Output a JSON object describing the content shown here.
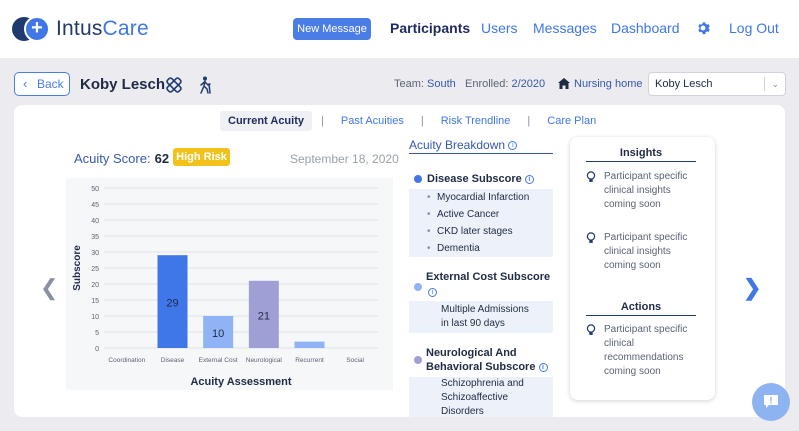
{
  "app": {
    "logo_part1": "Intus",
    "logo_part2": "Care"
  },
  "nav": {
    "new_message": "New Message",
    "links": [
      "Participants",
      "Users",
      "Messages",
      "Dashboard"
    ],
    "logout": "Log Out"
  },
  "header": {
    "back": "Back",
    "participant_name": "Koby Lesch",
    "team_label": "Team:",
    "team_value": "South",
    "enrolled_label": "Enrolled:",
    "enrolled_value": "2/2020",
    "residence": "Nursing home",
    "selected_participant": "Koby Lesch"
  },
  "tabs": [
    "Current Acuity",
    "Past Acuities",
    "Risk Trendline",
    "Care Plan"
  ],
  "acuity": {
    "score_label": "Acuity Score:",
    "score": "62",
    "risk": "High Risk",
    "date": "September 18, 2020"
  },
  "chart_data": {
    "type": "bar",
    "categories": [
      "Coordination",
      "Disease",
      "External Cost",
      "Neurological",
      "Recurrent",
      "Social"
    ],
    "values": [
      0,
      29,
      10,
      21,
      2,
      0
    ],
    "data_labels": [
      "",
      "29",
      "10",
      "21",
      "",
      ""
    ],
    "colors": [
      "#3f77e8",
      "#3f77e8",
      "#8fb3f5",
      "#9f9fd6",
      "#8fb3f5",
      "#8fb3f5"
    ],
    "xlabel": "Acuity Assessment",
    "ylabel": "Subscore",
    "ylim": [
      0,
      50
    ],
    "yticks": [
      0,
      5,
      10,
      15,
      20,
      25,
      30,
      35,
      40,
      45,
      50
    ],
    "grid": true
  },
  "breakdown": {
    "title": "Acuity Breakdown",
    "disease": {
      "title": "Disease Subscore",
      "color": "#3f77e8",
      "items": [
        "Myocardial Infarction",
        "Active Cancer",
        "CKD later stages",
        "Dementia"
      ]
    },
    "external": {
      "title": "External Cost Subscore",
      "color": "#8fb3f5",
      "line1": "Multiple Admissions",
      "line2": "in last 90 days"
    },
    "neuro": {
      "title1": "Neurological And",
      "title2": "Behavioral Subscore",
      "color": "#9f9fd6",
      "line1": "Schizophrenia and",
      "line2": "Schizoaffective",
      "line3": "Disorders"
    }
  },
  "insights": {
    "title": "Insights",
    "items": [
      {
        "l1": "Participant specific",
        "l2": "clinical insights",
        "l3": "coming soon"
      },
      {
        "l1": "Participant specific",
        "l2": "clinical insights",
        "l3": "coming soon"
      }
    ],
    "actions_title": "Actions",
    "action": {
      "l1": "Participant specific",
      "l2": "clinical",
      "l3": "recommendations",
      "l4": "coming soon"
    }
  }
}
